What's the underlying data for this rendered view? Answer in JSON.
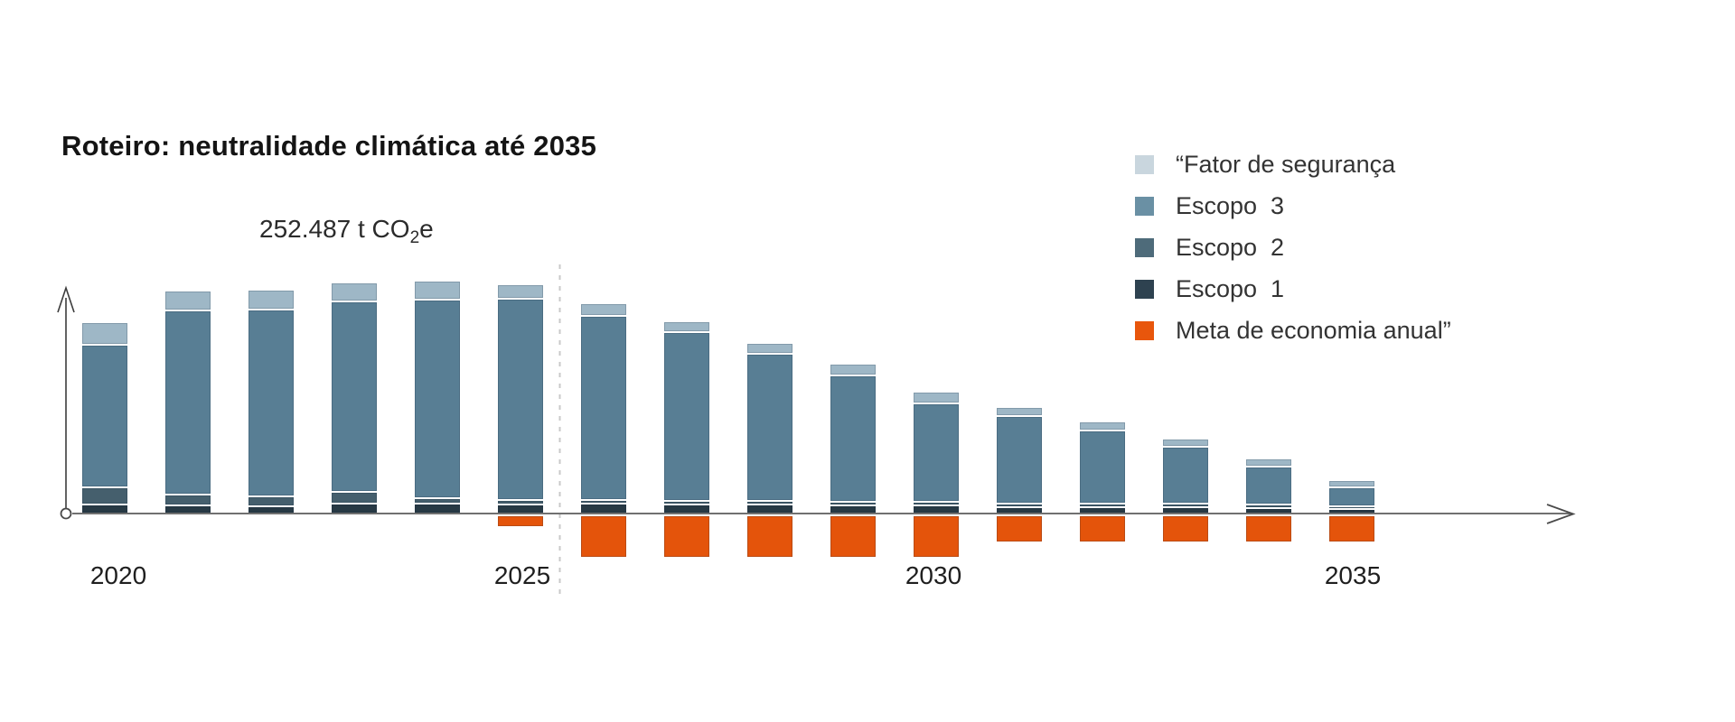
{
  "page": {
    "background": "#ffffff"
  },
  "title": {
    "text": "Roteiro: neutralidade climática até 2035"
  },
  "annotation": {
    "prefix": "252.487 t CO",
    "sub": "2",
    "suffix": "e"
  },
  "axis": {
    "x_labels": [
      "2020",
      "2025",
      "2030",
      "2035"
    ],
    "axis_color": "#707070",
    "divider_color": "#c9c9c9"
  },
  "legend": {
    "items": [
      {
        "id": "fator",
        "label": "“Fator de segurança",
        "color": "#c9d6de"
      },
      {
        "id": "escopo3",
        "label": "Escopo  3",
        "color": "#6a90a4"
      },
      {
        "id": "escopo2",
        "label": "Escopo  2",
        "color": "#4e6b7a"
      },
      {
        "id": "escopo1",
        "label": "Escopo  1",
        "color": "#2e4250"
      },
      {
        "id": "meta",
        "label": "Meta de economia anual”",
        "color": "#e8560c"
      }
    ]
  },
  "chart_data": {
    "type": "bar",
    "stacked": true,
    "title": "Roteiro: neutralidade climática até 2035",
    "annotation": "252.487 t CO2e (peak annual emissions label shown above 2021–2024 bars)",
    "x": [
      2020,
      2021,
      2022,
      2023,
      2024,
      2025,
      2026,
      2027,
      2028,
      2029,
      2030,
      2031,
      2032,
      2033,
      2034,
      2035
    ],
    "x_tick_labels": [
      "2020",
      "2025",
      "2030",
      "2035"
    ],
    "value_unit": "relative height units (no numeric y-axis shown in chart)",
    "legend_position": "right-top",
    "grid": false,
    "divider": "dashed vertical line between 2025 and 2026",
    "series": [
      {
        "name": "Escopo 1",
        "key": "escopo1",
        "color": "#273944",
        "values": [
          8,
          7,
          6,
          9,
          9,
          8,
          9,
          8,
          8,
          7,
          7,
          5,
          5,
          5,
          4,
          3
        ]
      },
      {
        "name": "Escopo 2",
        "key": "escopo2",
        "color": "#455f6d",
        "values": [
          17,
          10,
          9,
          11,
          4,
          3,
          2,
          2,
          2,
          2,
          2,
          2,
          2,
          2,
          2,
          1
        ]
      },
      {
        "name": "Escopo 3",
        "key": "escopo3",
        "color": "#587e94",
        "values": [
          156,
          202,
          205,
          209,
          218,
          221,
          202,
          185,
          161,
          138,
          107,
          95,
          79,
          61,
          40,
          19
        ]
      },
      {
        "name": "Fator de segurança",
        "key": "fator",
        "color": "#9eb7c6",
        "values": [
          23,
          20,
          20,
          19,
          19,
          14,
          12,
          10,
          10,
          11,
          11,
          8,
          8,
          7,
          7,
          6
        ]
      },
      {
        "name": "Meta de economia anual",
        "key": "meta",
        "color": "#e4540b",
        "direction": "below-axis",
        "values": [
          0,
          0,
          0,
          0,
          0,
          11,
          45,
          45,
          45,
          45,
          45,
          28,
          28,
          28,
          28,
          28
        ]
      }
    ]
  }
}
